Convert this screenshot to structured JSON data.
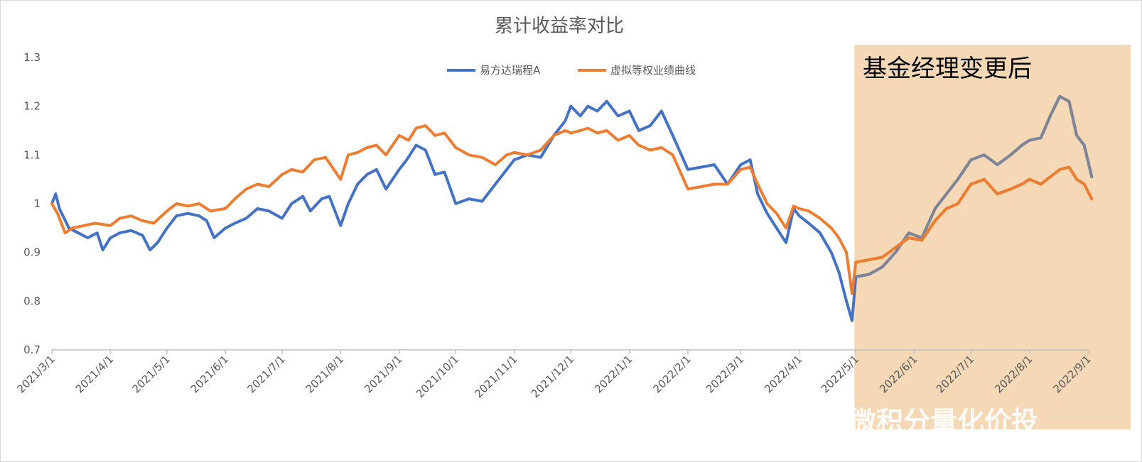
{
  "chart_data": {
    "type": "line",
    "title": "累计收益率对比",
    "xlabel": "",
    "ylabel": "",
    "ylim": [
      0.7,
      1.3
    ],
    "y_ticks": [
      "1.3",
      "1.2",
      "1.1",
      "1",
      "0.9",
      "0.8",
      "0.7"
    ],
    "x_ticks": [
      "2021/3/1",
      "2021/4/1",
      "2021/5/1",
      "2021/6/1",
      "2021/7/1",
      "2021/8/1",
      "2021/9/1",
      "2021/10/1",
      "2021/11/1",
      "2021/12/1",
      "2022/1/1",
      "2022/2/1",
      "2022/3/1",
      "2022/4/1",
      "2022/5/1",
      "2022/6/1",
      "2022/7/1",
      "2022/8/1",
      "2022/9/1"
    ],
    "legend_position": "top",
    "grid": false,
    "highlight_region": {
      "start": "2022/5/1",
      "end": "2022/9/1",
      "label": "基金经理变更后",
      "color": "#f5d9b6"
    },
    "series": [
      {
        "name": "易方达瑞程A",
        "color": "#4472c4",
        "points": [
          [
            "2021/3/1",
            1.0
          ],
          [
            "2021/3/3",
            1.02
          ],
          [
            "2021/3/5",
            0.99
          ],
          [
            "2021/3/10",
            0.95
          ],
          [
            "2021/3/15",
            0.94
          ],
          [
            "2021/3/20",
            0.93
          ],
          [
            "2021/3/25",
            0.94
          ],
          [
            "2021/3/28",
            0.905
          ],
          [
            "2021/4/1",
            0.93
          ],
          [
            "2021/4/6",
            0.94
          ],
          [
            "2021/4/12",
            0.945
          ],
          [
            "2021/4/18",
            0.935
          ],
          [
            "2021/4/22",
            0.905
          ],
          [
            "2021/4/26",
            0.92
          ],
          [
            "2021/5/1",
            0.95
          ],
          [
            "2021/5/6",
            0.975
          ],
          [
            "2021/5/12",
            0.98
          ],
          [
            "2021/5/18",
            0.975
          ],
          [
            "2021/5/22",
            0.965
          ],
          [
            "2021/5/26",
            0.93
          ],
          [
            "2021/6/1",
            0.95
          ],
          [
            "2021/6/6",
            0.96
          ],
          [
            "2021/6/12",
            0.97
          ],
          [
            "2021/6/18",
            0.99
          ],
          [
            "2021/6/24",
            0.985
          ],
          [
            "2021/7/1",
            0.97
          ],
          [
            "2021/7/6",
            1.0
          ],
          [
            "2021/7/12",
            1.015
          ],
          [
            "2021/7/16",
            0.985
          ],
          [
            "2021/7/22",
            1.01
          ],
          [
            "2021/7/26",
            1.015
          ],
          [
            "2021/8/1",
            0.955
          ],
          [
            "2021/8/5",
            1.0
          ],
          [
            "2021/8/10",
            1.04
          ],
          [
            "2021/8/15",
            1.06
          ],
          [
            "2021/8/20",
            1.07
          ],
          [
            "2021/8/25",
            1.03
          ],
          [
            "2021/9/1",
            1.07
          ],
          [
            "2021/9/5",
            1.09
          ],
          [
            "2021/9/10",
            1.12
          ],
          [
            "2021/9/15",
            1.11
          ],
          [
            "2021/9/20",
            1.06
          ],
          [
            "2021/9/25",
            1.065
          ],
          [
            "2021/10/1",
            1.0
          ],
          [
            "2021/10/8",
            1.01
          ],
          [
            "2021/10/15",
            1.005
          ],
          [
            "2021/10/22",
            1.04
          ],
          [
            "2021/10/28",
            1.07
          ],
          [
            "2021/11/1",
            1.09
          ],
          [
            "2021/11/8",
            1.1
          ],
          [
            "2021/11/15",
            1.095
          ],
          [
            "2021/11/22",
            1.14
          ],
          [
            "2021/11/28",
            1.17
          ],
          [
            "2021/12/1",
            1.2
          ],
          [
            "2021/12/6",
            1.18
          ],
          [
            "2021/12/10",
            1.2
          ],
          [
            "2021/12/15",
            1.19
          ],
          [
            "2021/12/20",
            1.21
          ],
          [
            "2021/12/26",
            1.18
          ],
          [
            "2022/1/1",
            1.19
          ],
          [
            "2022/1/6",
            1.15
          ],
          [
            "2022/1/12",
            1.16
          ],
          [
            "2022/1/18",
            1.19
          ],
          [
            "2022/1/24",
            1.14
          ],
          [
            "2022/2/1",
            1.07
          ],
          [
            "2022/2/8",
            1.075
          ],
          [
            "2022/2/15",
            1.08
          ],
          [
            "2022/2/22",
            1.04
          ],
          [
            "2022/3/1",
            1.08
          ],
          [
            "2022/3/6",
            1.09
          ],
          [
            "2022/3/10",
            1.02
          ],
          [
            "2022/3/15",
            0.98
          ],
          [
            "2022/3/20",
            0.95
          ],
          [
            "2022/3/25",
            0.92
          ],
          [
            "2022/3/29",
            0.99
          ],
          [
            "2022/4/1",
            0.975
          ],
          [
            "2022/4/6",
            0.96
          ],
          [
            "2022/4/12",
            0.94
          ],
          [
            "2022/4/18",
            0.9
          ],
          [
            "2022/4/22",
            0.86
          ],
          [
            "2022/4/26",
            0.8
          ],
          [
            "2022/4/29",
            0.76
          ],
          [
            "2022/5/1",
            0.85
          ],
          [
            "2022/5/8",
            0.855
          ],
          [
            "2022/5/15",
            0.87
          ],
          [
            "2022/5/22",
            0.9
          ],
          [
            "2022/5/29",
            0.94
          ],
          [
            "2022/6/5",
            0.93
          ],
          [
            "2022/6/12",
            0.99
          ],
          [
            "2022/6/18",
            1.02
          ],
          [
            "2022/6/24",
            1.05
          ],
          [
            "2022/7/1",
            1.09
          ],
          [
            "2022/7/8",
            1.1
          ],
          [
            "2022/7/15",
            1.08
          ],
          [
            "2022/7/22",
            1.1
          ],
          [
            "2022/7/28",
            1.12
          ],
          [
            "2022/8/1",
            1.13
          ],
          [
            "2022/8/7",
            1.135
          ],
          [
            "2022/8/12",
            1.18
          ],
          [
            "2022/8/17",
            1.22
          ],
          [
            "2022/8/22",
            1.21
          ],
          [
            "2022/8/26",
            1.14
          ],
          [
            "2022/8/30",
            1.12
          ],
          [
            "2022/9/3",
            1.055
          ]
        ]
      },
      {
        "name": "虚拟等权业绩曲线",
        "color": "#ed7d31",
        "points": [
          [
            "2021/3/1",
            1.0
          ],
          [
            "2021/3/4",
            0.98
          ],
          [
            "2021/3/8",
            0.94
          ],
          [
            "2021/3/12",
            0.95
          ],
          [
            "2021/3/18",
            0.955
          ],
          [
            "2021/3/24",
            0.96
          ],
          [
            "2021/4/1",
            0.955
          ],
          [
            "2021/4/6",
            0.97
          ],
          [
            "2021/4/12",
            0.975
          ],
          [
            "2021/4/18",
            0.965
          ],
          [
            "2021/4/24",
            0.96
          ],
          [
            "2021/5/1",
            0.985
          ],
          [
            "2021/5/6",
            1.0
          ],
          [
            "2021/5/12",
            0.995
          ],
          [
            "2021/5/18",
            1.0
          ],
          [
            "2021/5/24",
            0.985
          ],
          [
            "2021/6/1",
            0.99
          ],
          [
            "2021/6/6",
            1.01
          ],
          [
            "2021/6/12",
            1.03
          ],
          [
            "2021/6/18",
            1.04
          ],
          [
            "2021/6/24",
            1.035
          ],
          [
            "2021/7/1",
            1.06
          ],
          [
            "2021/7/6",
            1.07
          ],
          [
            "2021/7/12",
            1.065
          ],
          [
            "2021/7/18",
            1.09
          ],
          [
            "2021/7/24",
            1.095
          ],
          [
            "2021/8/1",
            1.05
          ],
          [
            "2021/8/5",
            1.1
          ],
          [
            "2021/8/10",
            1.105
          ],
          [
            "2021/8/15",
            1.115
          ],
          [
            "2021/8/20",
            1.12
          ],
          [
            "2021/8/25",
            1.1
          ],
          [
            "2021/9/1",
            1.14
          ],
          [
            "2021/9/6",
            1.13
          ],
          [
            "2021/9/10",
            1.155
          ],
          [
            "2021/9/15",
            1.16
          ],
          [
            "2021/9/20",
            1.14
          ],
          [
            "2021/9/25",
            1.145
          ],
          [
            "2021/10/1",
            1.115
          ],
          [
            "2021/10/8",
            1.1
          ],
          [
            "2021/10/15",
            1.095
          ],
          [
            "2021/10/22",
            1.08
          ],
          [
            "2021/10/28",
            1.1
          ],
          [
            "2021/11/1",
            1.105
          ],
          [
            "2021/11/8",
            1.1
          ],
          [
            "2021/11/15",
            1.11
          ],
          [
            "2021/11/22",
            1.14
          ],
          [
            "2021/11/28",
            1.15
          ],
          [
            "2021/12/1",
            1.145
          ],
          [
            "2021/12/6",
            1.15
          ],
          [
            "2021/12/10",
            1.155
          ],
          [
            "2021/12/15",
            1.145
          ],
          [
            "2021/12/20",
            1.15
          ],
          [
            "2021/12/26",
            1.13
          ],
          [
            "2022/1/1",
            1.14
          ],
          [
            "2022/1/6",
            1.12
          ],
          [
            "2022/1/12",
            1.11
          ],
          [
            "2022/1/18",
            1.115
          ],
          [
            "2022/1/24",
            1.1
          ],
          [
            "2022/2/1",
            1.03
          ],
          [
            "2022/2/8",
            1.035
          ],
          [
            "2022/2/15",
            1.04
          ],
          [
            "2022/2/22",
            1.04
          ],
          [
            "2022/3/1",
            1.07
          ],
          [
            "2022/3/6",
            1.075
          ],
          [
            "2022/3/10",
            1.04
          ],
          [
            "2022/3/15",
            1.0
          ],
          [
            "2022/3/20",
            0.98
          ],
          [
            "2022/3/25",
            0.95
          ],
          [
            "2022/3/29",
            0.995
          ],
          [
            "2022/4/1",
            0.99
          ],
          [
            "2022/4/6",
            0.985
          ],
          [
            "2022/4/12",
            0.97
          ],
          [
            "2022/4/18",
            0.95
          ],
          [
            "2022/4/22",
            0.93
          ],
          [
            "2022/4/26",
            0.9
          ],
          [
            "2022/4/29",
            0.815
          ],
          [
            "2022/5/1",
            0.88
          ],
          [
            "2022/5/8",
            0.885
          ],
          [
            "2022/5/15",
            0.89
          ],
          [
            "2022/5/22",
            0.91
          ],
          [
            "2022/5/29",
            0.93
          ],
          [
            "2022/6/5",
            0.925
          ],
          [
            "2022/6/12",
            0.965
          ],
          [
            "2022/6/18",
            0.99
          ],
          [
            "2022/6/24",
            1.0
          ],
          [
            "2022/7/1",
            1.04
          ],
          [
            "2022/7/8",
            1.05
          ],
          [
            "2022/7/15",
            1.02
          ],
          [
            "2022/7/22",
            1.03
          ],
          [
            "2022/7/28",
            1.04
          ],
          [
            "2022/8/1",
            1.05
          ],
          [
            "2022/8/7",
            1.04
          ],
          [
            "2022/8/12",
            1.055
          ],
          [
            "2022/8/17",
            1.07
          ],
          [
            "2022/8/22",
            1.075
          ],
          [
            "2022/8/26",
            1.05
          ],
          [
            "2022/8/30",
            1.04
          ],
          [
            "2022/9/3",
            1.01
          ]
        ]
      }
    ]
  },
  "watermark": {
    "text": "雪球：微积分量化价投",
    "logo": "snowball-logo-icon"
  }
}
